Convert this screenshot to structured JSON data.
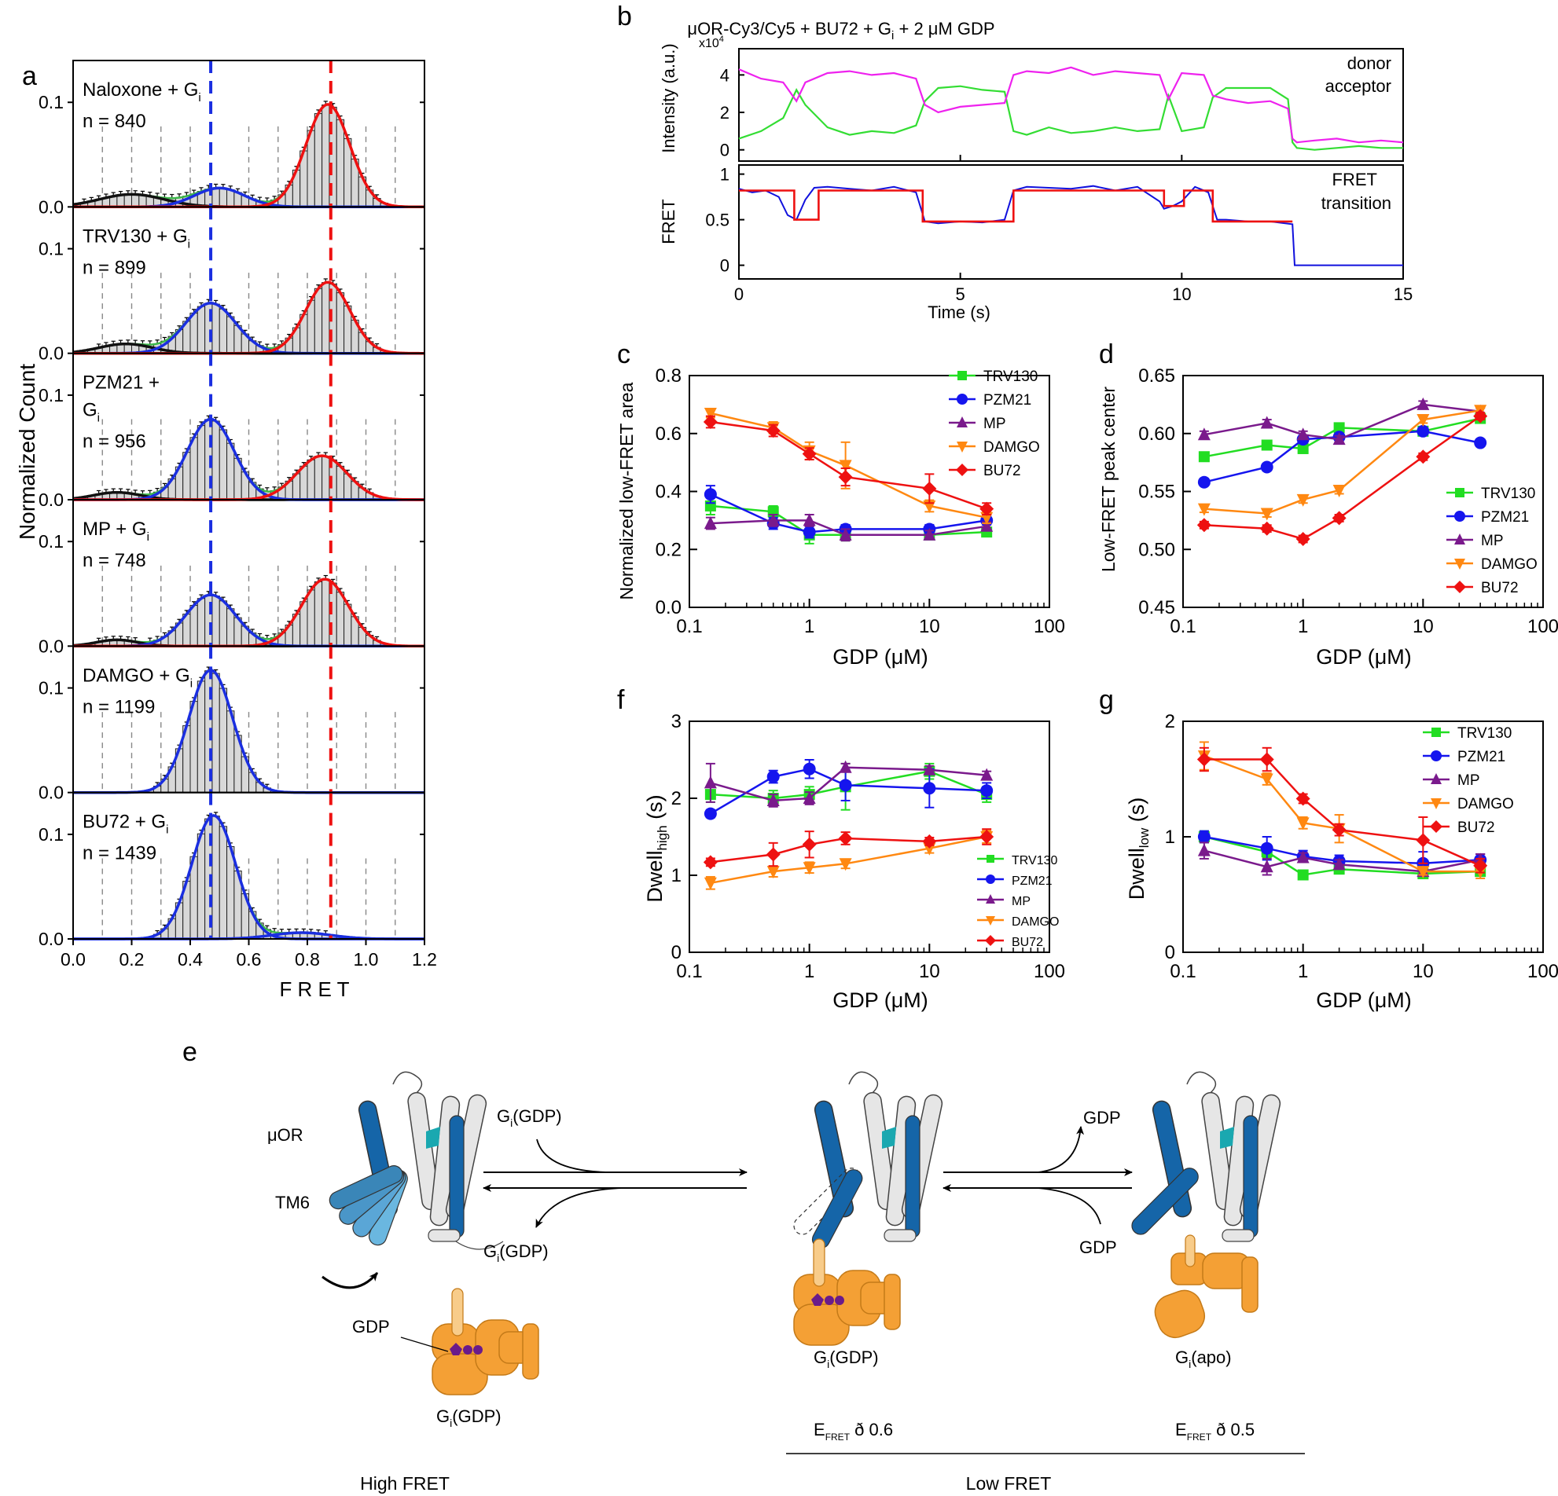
{
  "panel_labels": {
    "a": "a",
    "b": "b",
    "c": "c",
    "d": "d",
    "e": "e",
    "f": "f",
    "g": "g"
  },
  "colors": {
    "TRV130": "#22dd22",
    "PZM21": "#1515ee",
    "MP": "#7a1a8c",
    "DAMGO": "#ff8811",
    "BU72": "#ee1111",
    "donor": "#33dd33",
    "acceptor": "#ee22ee",
    "fret": "#1111dd",
    "transition": "#ee1111",
    "gi_orange": "#f4a035",
    "helix_dark_blue": "#1565a8",
    "tm6_light_blue": "#6ab7e0",
    "teal": "#1aa8b0",
    "gdp_purple": "#6a1b8a"
  },
  "chart_data": [
    {
      "id": "a",
      "type": "bar",
      "title": "",
      "xlabel": "F R E T",
      "ylabel": "Normalized Count",
      "xlim": [
        0.0,
        1.2
      ],
      "ylim": [
        0.0,
        0.14
      ],
      "xticks": [
        "0.0",
        "0.2",
        "0.4",
        "0.6",
        "0.8",
        "1.0",
        "1.2"
      ],
      "yticks": [
        "0.0",
        "0.1"
      ],
      "bin_width": 0.025,
      "reference_lines": {
        "low_fret": 0.47,
        "high_fret": 0.88
      },
      "panels": [
        {
          "label_line1": "Naloxone + G",
          "label_sub": "i",
          "label_line2": "",
          "n_text": "n = 840",
          "components": [
            {
              "mu": 0.2,
              "sigma": 0.11,
              "amp": 0.012,
              "color": "black"
            },
            {
              "mu": 0.5,
              "sigma": 0.085,
              "amp": 0.018,
              "color": "blue"
            },
            {
              "mu": 0.87,
              "sigma": 0.075,
              "amp": 0.098,
              "color": "red"
            }
          ]
        },
        {
          "label_line1": "TRV130 + G",
          "label_sub": "i",
          "label_line2": "",
          "n_text": "n = 899",
          "components": [
            {
              "mu": 0.18,
              "sigma": 0.09,
              "amp": 0.009,
              "color": "black"
            },
            {
              "mu": 0.47,
              "sigma": 0.085,
              "amp": 0.048,
              "color": "blue"
            },
            {
              "mu": 0.87,
              "sigma": 0.075,
              "amp": 0.068,
              "color": "red"
            }
          ]
        },
        {
          "label_line1": "PZM21 +",
          "label_sub": "i",
          "label_line2": "G",
          "n_text": "n = 956",
          "components": [
            {
              "mu": 0.15,
              "sigma": 0.08,
              "amp": 0.007,
              "color": "black"
            },
            {
              "mu": 0.47,
              "sigma": 0.08,
              "amp": 0.077,
              "color": "blue"
            },
            {
              "mu": 0.85,
              "sigma": 0.085,
              "amp": 0.042,
              "color": "red"
            }
          ]
        },
        {
          "label_line1": "MP  + G",
          "label_sub": "i",
          "label_line2": "",
          "n_text": "n = 748",
          "components": [
            {
              "mu": 0.15,
              "sigma": 0.07,
              "amp": 0.006,
              "color": "black"
            },
            {
              "mu": 0.47,
              "sigma": 0.085,
              "amp": 0.049,
              "color": "blue"
            },
            {
              "mu": 0.86,
              "sigma": 0.08,
              "amp": 0.064,
              "color": "red"
            }
          ]
        },
        {
          "label_line1": "DAMGO + G",
          "label_sub": "i",
          "label_line2": "",
          "n_text": "n = 1199",
          "components": [
            {
              "mu": 0.47,
              "sigma": 0.075,
              "amp": 0.117,
              "color": "blue"
            }
          ]
        },
        {
          "label_line1": "BU72 + G",
          "label_sub": "i",
          "label_line2": "",
          "n_text": "n = 1439",
          "components": [
            {
              "mu": 0.48,
              "sigma": 0.075,
              "amp": 0.118,
              "color": "blue"
            },
            {
              "mu": 0.78,
              "sigma": 0.1,
              "amp": 0.006,
              "color": "blue"
            }
          ]
        }
      ]
    },
    {
      "id": "b_intensity",
      "type": "line",
      "title": "μOR-Cy3/Cy5 + BU72 + G",
      "title_sub": "i",
      "title_tail": " + 2 μM GDP",
      "ylabel": "Intensity (a.u.)",
      "yscale_label": "x10",
      "yscale_exp": "4",
      "xlim": [
        0,
        15
      ],
      "ylim": [
        -0.6,
        5.4
      ],
      "yticks": [
        "0",
        "2",
        "4"
      ],
      "series": [
        {
          "name": "donor",
          "x": [
            0,
            0.5,
            1,
            1.3,
            1.5,
            2,
            2.5,
            3,
            3.5,
            4,
            4.2,
            4.5,
            5,
            5.5,
            6,
            6.2,
            6.5,
            7,
            7.5,
            8,
            8.5,
            9,
            9.5,
            9.7,
            10,
            10.5,
            10.7,
            11,
            11.5,
            12,
            12.4,
            12.5,
            12.6,
            13,
            13.5,
            14,
            14.5,
            15
          ],
          "y": [
            0.6,
            1.0,
            1.7,
            3.2,
            2.4,
            1.2,
            0.8,
            1.0,
            0.9,
            1.3,
            2.6,
            3.3,
            3.4,
            3.2,
            3.1,
            1.0,
            0.8,
            1.2,
            0.9,
            1.0,
            1.2,
            1.0,
            1.1,
            2.9,
            1.0,
            1.2,
            2.8,
            3.3,
            3.3,
            3.3,
            2.7,
            0.4,
            0.1,
            0.0,
            0.1,
            0.2,
            0.1,
            0.1
          ]
        },
        {
          "name": "acceptor",
          "x": [
            0,
            0.5,
            1,
            1.3,
            1.5,
            2,
            2.5,
            3,
            3.5,
            4,
            4.2,
            4.5,
            5,
            5.5,
            6,
            6.2,
            6.5,
            7,
            7.5,
            8,
            8.5,
            9,
            9.5,
            9.7,
            10,
            10.5,
            10.7,
            11,
            11.5,
            12,
            12.4,
            12.5,
            12.6,
            13,
            13.5,
            14,
            14.5,
            15
          ],
          "y": [
            4.3,
            3.8,
            3.6,
            2.6,
            3.6,
            4.1,
            4.2,
            4.0,
            4.1,
            3.8,
            2.4,
            2.0,
            2.3,
            2.4,
            2.5,
            4.0,
            4.2,
            4.1,
            4.4,
            4.0,
            4.2,
            4.1,
            4.0,
            2.7,
            4.1,
            4.0,
            2.9,
            2.7,
            2.5,
            2.6,
            2.2,
            0.6,
            0.4,
            0.5,
            0.6,
            0.4,
            0.5,
            0.4
          ]
        }
      ]
    },
    {
      "id": "b_fret",
      "type": "line",
      "ylabel": "FRET",
      "xlabel": "Time (s)",
      "xlim": [
        0,
        15
      ],
      "ylim": [
        -0.15,
        1.1
      ],
      "xticks": [
        "0",
        "5",
        "10",
        "15"
      ],
      "yticks": [
        "0",
        "0.5",
        "1"
      ],
      "series": [
        {
          "name": "FRET",
          "x": [
            0,
            0.3,
            0.6,
            0.9,
            1.1,
            1.3,
            1.5,
            1.7,
            2.0,
            2.5,
            3.0,
            3.5,
            4.0,
            4.2,
            4.5,
            5.0,
            5.5,
            6.0,
            6.2,
            6.5,
            7.0,
            7.5,
            8.0,
            8.5,
            9.0,
            9.5,
            9.6,
            9.8,
            10.0,
            10.3,
            10.6,
            10.8,
            11.0,
            11.5,
            12.0,
            12.5,
            12.55,
            13,
            14,
            15
          ],
          "y": [
            0.84,
            0.8,
            0.82,
            0.75,
            0.55,
            0.5,
            0.72,
            0.85,
            0.86,
            0.84,
            0.82,
            0.86,
            0.8,
            0.48,
            0.46,
            0.48,
            0.47,
            0.5,
            0.82,
            0.86,
            0.85,
            0.84,
            0.87,
            0.82,
            0.86,
            0.7,
            0.62,
            0.65,
            0.7,
            0.86,
            0.8,
            0.5,
            0.5,
            0.48,
            0.48,
            0.45,
            0.0,
            0.0,
            0.0,
            0.0
          ]
        },
        {
          "name": "transition",
          "x": [
            0,
            1.25,
            1.25,
            1.8,
            1.8,
            4.15,
            4.15,
            6.2,
            6.2,
            9.6,
            9.6,
            10.05,
            10.05,
            10.7,
            10.7,
            12.5
          ],
          "y": [
            0.82,
            0.82,
            0.5,
            0.5,
            0.82,
            0.82,
            0.48,
            0.48,
            0.82,
            0.82,
            0.65,
            0.65,
            0.82,
            0.82,
            0.48,
            0.48
          ]
        }
      ]
    },
    {
      "id": "c",
      "type": "line",
      "xscale": "log",
      "xlabel": "GDP (μM)",
      "ylabel": "Normalized low-FRET area",
      "xlim": [
        0.1,
        100
      ],
      "ylim": [
        0.0,
        0.8
      ],
      "xticks": [
        "0.1",
        "1",
        "10",
        "100"
      ],
      "yticks": [
        "0.0",
        "0.2",
        "0.4",
        "0.6",
        "0.8"
      ],
      "x": [
        0.15,
        0.5,
        1,
        2,
        10,
        30
      ],
      "legend_position": "top-right",
      "series": [
        {
          "name": "TRV130",
          "values": [
            0.35,
            0.33,
            0.25,
            0.25,
            0.25,
            0.26
          ],
          "errors": [
            0.03,
            0.02,
            0.03,
            0.02,
            0.015,
            0.015
          ]
        },
        {
          "name": "PZM21",
          "values": [
            0.39,
            0.29,
            0.26,
            0.27,
            0.27,
            0.3
          ],
          "errors": [
            0.03,
            0.02,
            0.02,
            0.015,
            0.015,
            0.015
          ]
        },
        {
          "name": "MP",
          "values": [
            0.29,
            0.3,
            0.3,
            0.25,
            0.25,
            0.28
          ],
          "errors": [
            0.02,
            0.02,
            0.02,
            0.02,
            0.015,
            0.015
          ]
        },
        {
          "name": "DAMGO",
          "values": [
            0.67,
            0.62,
            0.54,
            0.49,
            0.35,
            0.31
          ],
          "errors": [
            0.015,
            0.02,
            0.03,
            0.08,
            0.02,
            0.02
          ]
        },
        {
          "name": "BU72",
          "values": [
            0.64,
            0.61,
            0.53,
            0.45,
            0.41,
            0.34
          ],
          "errors": [
            0.02,
            0.02,
            0.02,
            0.03,
            0.05,
            0.02
          ]
        }
      ]
    },
    {
      "id": "d",
      "type": "line",
      "xscale": "log",
      "xlabel": "GDP (μM)",
      "ylabel": "Low-FRET peak center",
      "xlim": [
        0.1,
        100
      ],
      "ylim": [
        0.45,
        0.65
      ],
      "xticks": [
        "0.1",
        "1",
        "10",
        "100"
      ],
      "yticks": [
        "0.45",
        "0.50",
        "0.55",
        "0.60",
        "0.65"
      ],
      "x": [
        0.15,
        0.5,
        1,
        2,
        10,
        30
      ],
      "legend_position": "right",
      "series": [
        {
          "name": "TRV130",
          "values": [
            0.58,
            0.59,
            0.587,
            0.605,
            0.602,
            0.613
          ],
          "errors": [
            0.003,
            0.003,
            0.004,
            0.003,
            0.003,
            0.003
          ]
        },
        {
          "name": "PZM21",
          "values": [
            0.558,
            0.571,
            0.595,
            0.597,
            0.602,
            0.592
          ],
          "errors": [
            0.003,
            0.003,
            0.003,
            0.003,
            0.003,
            0.003
          ]
        },
        {
          "name": "MP",
          "values": [
            0.599,
            0.609,
            0.599,
            0.595,
            0.625,
            0.619
          ],
          "errors": [
            0.003,
            0.003,
            0.003,
            0.003,
            0.003,
            0.003
          ]
        },
        {
          "name": "DAMGO",
          "values": [
            0.535,
            0.531,
            0.543,
            0.551,
            0.612,
            0.62
          ],
          "errors": [
            0.003,
            0.003,
            0.003,
            0.003,
            0.003,
            0.003
          ]
        },
        {
          "name": "BU72",
          "values": [
            0.521,
            0.518,
            0.509,
            0.527,
            0.58,
            0.615
          ],
          "errors": [
            0.003,
            0.003,
            0.003,
            0.003,
            0.003,
            0.003
          ]
        }
      ]
    },
    {
      "id": "f",
      "type": "line",
      "xscale": "log",
      "xlabel": "GDP (μM)",
      "ylabel": "Dwell",
      "ylabel_sub": "high",
      "ylabel_tail": " (s)",
      "xlim": [
        0.1,
        100
      ],
      "ylim": [
        0,
        3
      ],
      "xticks": [
        "0.1",
        "1",
        "10",
        "100"
      ],
      "yticks": [
        "0",
        "1",
        "2",
        "3"
      ],
      "x": [
        0.15,
        0.5,
        1,
        2,
        10,
        30
      ],
      "legend_position": "bottom-right",
      "series": [
        {
          "name": "TRV130",
          "values": [
            2.05,
            2.0,
            2.05,
            2.15,
            2.35,
            2.05
          ],
          "errors": [
            0.1,
            0.1,
            0.1,
            0.3,
            0.1,
            0.1
          ]
        },
        {
          "name": "PZM21",
          "values": [
            1.8,
            2.28,
            2.38,
            2.17,
            2.13,
            2.1
          ],
          "errors": [
            0.05,
            0.08,
            0.12,
            0.2,
            0.25,
            0.1
          ]
        },
        {
          "name": "MP",
          "values": [
            2.2,
            1.97,
            2.0,
            2.4,
            2.37,
            2.3
          ],
          "errors": [
            0.25,
            0.08,
            0.08,
            0.05,
            0.05,
            0.05
          ]
        },
        {
          "name": "DAMGO",
          "values": [
            0.9,
            1.05,
            1.1,
            1.15,
            1.35,
            1.5
          ],
          "errors": [
            0.08,
            0.07,
            0.07,
            0.06,
            0.06,
            0.08
          ]
        },
        {
          "name": "BU72",
          "values": [
            1.17,
            1.27,
            1.4,
            1.48,
            1.44,
            1.5
          ],
          "errors": [
            0.05,
            0.15,
            0.17,
            0.08,
            0.05,
            0.1
          ]
        }
      ]
    },
    {
      "id": "g",
      "type": "line",
      "xscale": "log",
      "xlabel": "GDP (μM)",
      "ylabel": "Dwell",
      "ylabel_sub": "low",
      "ylabel_tail": " (s)",
      "xlim": [
        0.1,
        100
      ],
      "ylim": [
        0,
        2
      ],
      "xticks": [
        "0.1",
        "1",
        "10",
        "100"
      ],
      "yticks": [
        "0",
        "1",
        "2"
      ],
      "x": [
        0.15,
        0.5,
        1,
        2,
        10,
        30
      ],
      "legend_position": "top-right",
      "series": [
        {
          "name": "TRV130",
          "values": [
            1.0,
            0.87,
            0.67,
            0.72,
            0.68,
            0.7
          ],
          "errors": [
            0.05,
            0.05,
            0.04,
            0.04,
            0.03,
            0.04
          ]
        },
        {
          "name": "PZM21",
          "values": [
            1.0,
            0.9,
            0.83,
            0.79,
            0.77,
            0.8
          ],
          "errors": [
            0.05,
            0.1,
            0.05,
            0.05,
            0.1,
            0.05
          ]
        },
        {
          "name": "MP",
          "values": [
            0.88,
            0.74,
            0.82,
            0.76,
            0.7,
            0.8
          ],
          "errors": [
            0.07,
            0.07,
            0.04,
            0.04,
            0.04,
            0.05
          ]
        },
        {
          "name": "DAMGO",
          "values": [
            1.7,
            1.5,
            1.12,
            1.07,
            0.7,
            0.7
          ],
          "errors": [
            0.12,
            0.05,
            0.05,
            0.12,
            0.03,
            0.06
          ]
        },
        {
          "name": "BU72",
          "values": [
            1.67,
            1.67,
            1.33,
            1.06,
            0.97,
            0.75
          ],
          "errors": [
            0.1,
            0.1,
            0.04,
            0.05,
            0.2,
            0.06
          ]
        }
      ]
    }
  ],
  "scheme_e": {
    "mu_or": "μOR",
    "tm6": "TM6",
    "gi_gdp_top": "G",
    "gi_gdp_top_sub": "i",
    "gi_gdp_top_tail": "(GDP)",
    "gi_gdp_back": "G",
    "gi_gdp_back_sub": "i",
    "gi_gdp_back_tail": "(GDP)",
    "gdp_label": "GDP",
    "gi_gdp_complex": "G",
    "gi_gdp_complex_sub": "i",
    "gi_gdp_complex_tail": "(GDP)",
    "gdp_out": "GDP",
    "gdp_in": "GDP",
    "gi_gdp_bound": "G",
    "gi_gdp_bound_sub": "i",
    "gi_gdp_bound_tail": "(GDP)",
    "gi_apo": "G",
    "gi_apo_sub": "i",
    "gi_apo_tail": "(apo)",
    "efret_mid": "E",
    "efret_mid_sub": "FRET",
    "efret_mid_tail": " ð 0.6",
    "efret_right": "E",
    "efret_right_sub": "FRET",
    "efret_right_tail": " ð 0.5",
    "high_fret": "High FRET",
    "low_fret": "Low FRET"
  }
}
